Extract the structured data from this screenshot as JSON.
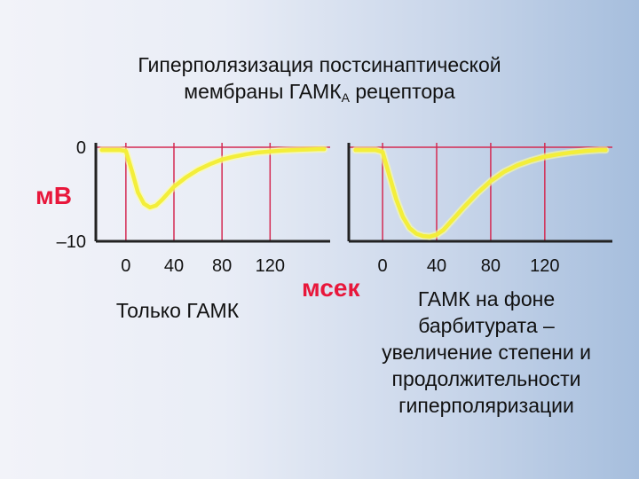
{
  "slide": {
    "title_line1": "Гиперполязизация постсинаптической",
    "title_line2_main": "мембраны ГАМК",
    "title_line2_sub": "А",
    "title_line2_end": " рецептора",
    "caption_left": "Только ГАМК",
    "caption_right": "ГАМК на фоне\nбарбитурата –\nувеличение степени и\nпродолжительности\nгиперполяризации"
  },
  "colors": {
    "trace": "#f3ee3a",
    "trace_glow": "#ffff9a",
    "grid": "#d42a52",
    "axis": "#222222",
    "unit_label": "#e8173b"
  },
  "chart_data": [
    {
      "type": "line",
      "name": "Только ГАМК",
      "xlabel": "мсек",
      "ylabel": "мВ",
      "ylim": [
        -10,
        0
      ],
      "xlim": [
        -25,
        170
      ],
      "yticks": [
        "0",
        "–10"
      ],
      "xticks": [
        0,
        40,
        80,
        120
      ],
      "xtick_labels": [
        "0",
        "40",
        "80",
        "120"
      ],
      "grid": true,
      "x": [
        -20,
        -5,
        0,
        5,
        10,
        15,
        20,
        25,
        30,
        35,
        40,
        50,
        60,
        70,
        80,
        90,
        100,
        110,
        120,
        130,
        140,
        150,
        160,
        165
      ],
      "y": [
        -0.3,
        -0.3,
        -0.4,
        -2.5,
        -4.8,
        -6.0,
        -6.4,
        -6.2,
        -5.6,
        -4.9,
        -4.2,
        -3.2,
        -2.4,
        -1.8,
        -1.3,
        -1.0,
        -0.75,
        -0.55,
        -0.45,
        -0.35,
        -0.3,
        -0.25,
        -0.2,
        -0.2
      ]
    },
    {
      "type": "line",
      "name": "ГАМК на фоне барбитурата",
      "xlabel": "мсек",
      "ylim": [
        -10,
        0
      ],
      "xlim": [
        -25,
        170
      ],
      "xticks": [
        0,
        40,
        80,
        120
      ],
      "xtick_labels": [
        "0",
        "40",
        "80",
        "120"
      ],
      "grid": true,
      "x": [
        -20,
        -5,
        0,
        5,
        10,
        15,
        20,
        25,
        30,
        35,
        40,
        45,
        50,
        55,
        60,
        70,
        80,
        90,
        100,
        110,
        120,
        130,
        140,
        150,
        160,
        165
      ],
      "y": [
        -0.3,
        -0.3,
        -0.5,
        -3.0,
        -5.5,
        -7.4,
        -8.6,
        -9.2,
        -9.45,
        -9.5,
        -9.3,
        -8.8,
        -8.0,
        -7.2,
        -6.4,
        -4.9,
        -3.6,
        -2.6,
        -1.9,
        -1.4,
        -1.0,
        -0.75,
        -0.55,
        -0.4,
        -0.3,
        -0.3
      ]
    }
  ]
}
